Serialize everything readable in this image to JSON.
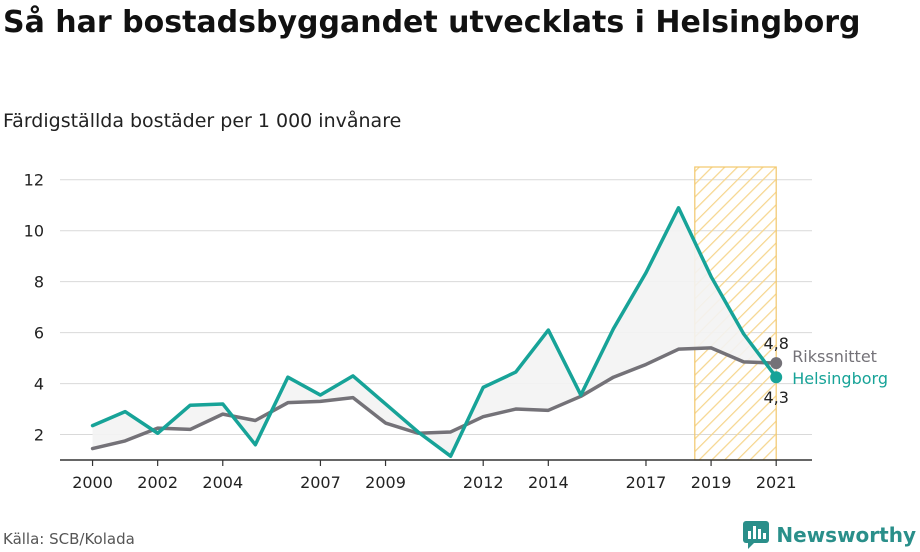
{
  "header": {
    "title": "Så har bostadsbyggandet utvecklats i Helsingborg",
    "subtitle": "Färdigställda bostäder per 1 000 invånare"
  },
  "footer": {
    "source": "Källa: SCB/Kolada",
    "brand": "Newsworthy",
    "brand_icon": "newsworthy-logo-icon"
  },
  "colors": {
    "helsingborg": "#17a398",
    "riket": "#747278",
    "highlight_stroke": "#f2c76b",
    "highlight_hatch": "#f6d68f",
    "grid": "#d9d9d9",
    "area_fill": "#f3f3f3"
  },
  "chart_data": {
    "type": "line",
    "x": [
      2000,
      2001,
      2002,
      2003,
      2004,
      2005,
      2006,
      2007,
      2008,
      2009,
      2010,
      2011,
      2012,
      2013,
      2014,
      2015,
      2016,
      2017,
      2018,
      2019,
      2020,
      2021
    ],
    "x_ticks": [
      2000,
      2002,
      2004,
      2007,
      2009,
      2012,
      2014,
      2017,
      2019,
      2021
    ],
    "y_ticks": [
      2,
      4,
      6,
      8,
      10,
      12
    ],
    "ylim": [
      1,
      12.5
    ],
    "xlim": [
      1999.0,
      2022.1
    ],
    "grid": true,
    "highlight_range": [
      2018.5,
      2021
    ],
    "series": [
      {
        "name": "Rikssnittet",
        "color": "#747278",
        "values": [
          1.45,
          1.75,
          2.25,
          2.2,
          2.8,
          2.55,
          3.25,
          3.3,
          3.45,
          2.45,
          2.05,
          2.1,
          2.7,
          3.0,
          2.95,
          3.5,
          4.25,
          4.75,
          5.35,
          5.4,
          4.85,
          4.8
        ],
        "end_label": "4,8"
      },
      {
        "name": "Helsingborg",
        "color": "#17a398",
        "values": [
          2.35,
          2.9,
          2.05,
          3.15,
          3.2,
          1.6,
          4.25,
          3.55,
          4.3,
          3.2,
          2.1,
          1.15,
          3.85,
          4.45,
          6.1,
          3.55,
          6.15,
          8.35,
          10.9,
          8.2,
          5.95,
          4.25
        ],
        "end_label": "4,3"
      }
    ]
  }
}
